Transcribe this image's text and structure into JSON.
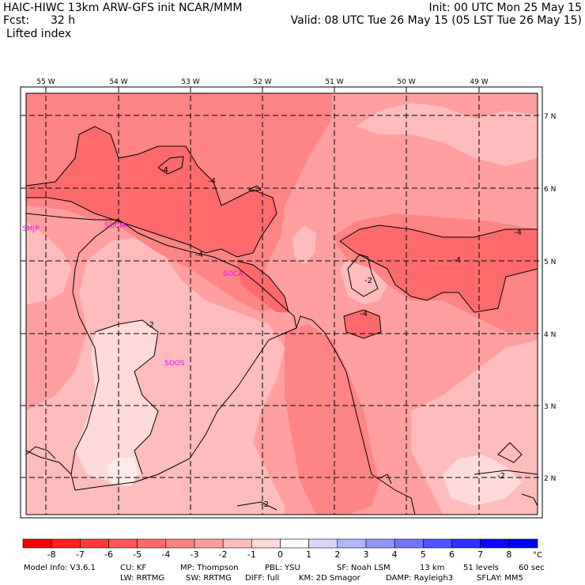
{
  "header": {
    "model_line": "HAIC-HIWC 13km ARW-GFS init    NCAR/MMM",
    "fcst_label": "Fcst:",
    "fcst_value": "32 h",
    "field_name": "Lifted index",
    "init_line": "Init: 00 UTC Mon 25 May 15",
    "valid_line": "Valid: 08 UTC Tue 26 May 15 (05 LST Tue 26 May 15)"
  },
  "map": {
    "lon_labels": [
      "55 W",
      "54 W",
      "53 W",
      "52 W",
      "51 W",
      "50 W",
      "49 W"
    ],
    "lat_labels": [
      "7 N",
      "6 N",
      "5 N",
      "4 N",
      "3 N",
      "2 N"
    ],
    "stations": [
      "SMJP",
      "SOCM",
      "SOCA",
      "SOOS"
    ],
    "contour_labels": [
      "-4",
      "-4",
      "-4",
      "-4",
      "-4",
      "-4",
      "-2",
      "-2",
      "-2",
      "-2"
    ],
    "station_color": "#ff00ff"
  },
  "colorbar": {
    "ticks": [
      "-8",
      "-7",
      "-6",
      "-5",
      "-4",
      "-3",
      "-2",
      "-1",
      "0",
      "1",
      "2",
      "3",
      "4",
      "5",
      "6",
      "7",
      "8"
    ],
    "unit": "°C",
    "colors": [
      "#ff0000",
      "#ff2020",
      "#ff3b3b",
      "#ff5555",
      "#ff6b6b",
      "#ff8484",
      "#ff9f9f",
      "#ffbcbc",
      "#ffdada",
      "#ffffff",
      "#d6d6ff",
      "#b4b4ff",
      "#9696ff",
      "#7474ff",
      "#5252ff",
      "#3030ff",
      "#0a0aff"
    ]
  },
  "footer": {
    "model_info": "Model Info: V3.6.1",
    "cu": "CU: KF",
    "mp": "MP: Thompson",
    "pbl": "PBL: YSU",
    "sf": "SF: Noah LSM",
    "res": "13 km",
    "levels": "51 levels",
    "dt": "60 sec",
    "lw": "LW: RRTMG",
    "sw": "SW: RRTMG",
    "diff": "DIFF: full",
    "km": "KM: 2D Smagor",
    "damp": "DAMP: Rayleigh3",
    "sflay": "SFLAY: MM5"
  }
}
